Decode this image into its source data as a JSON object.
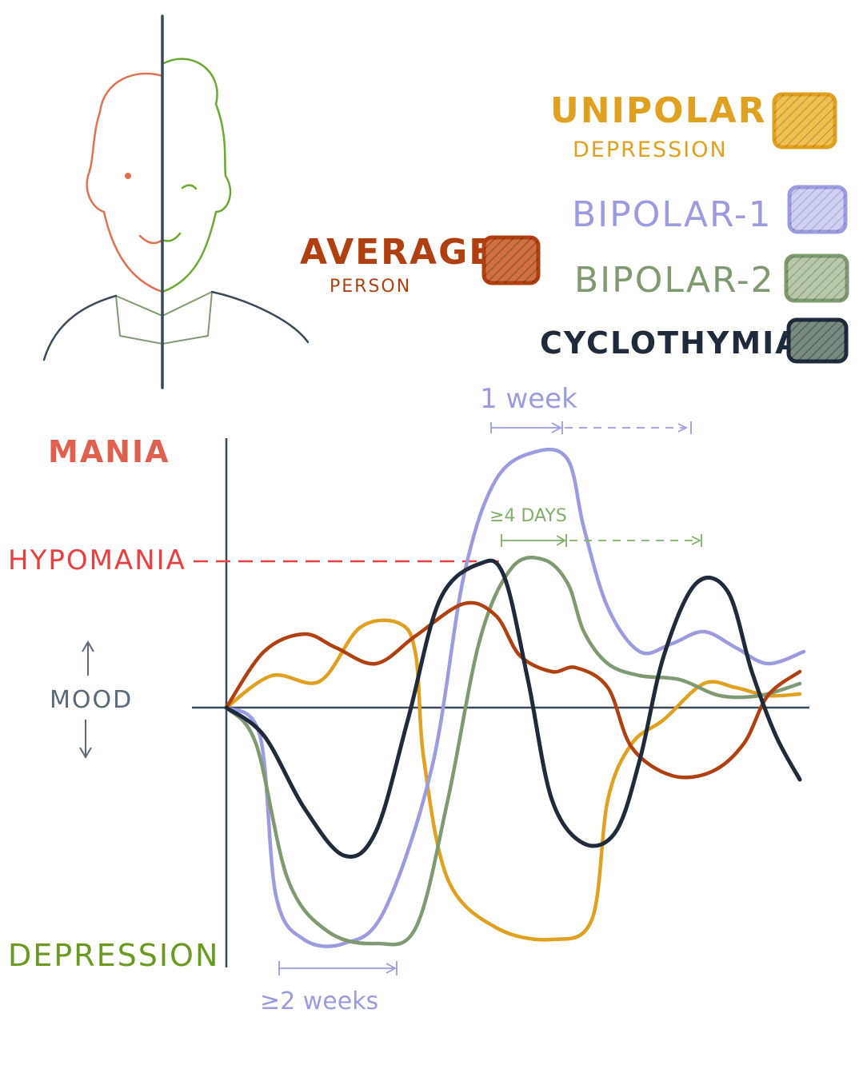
{
  "legend": {
    "average": {
      "title": "AVERAGE",
      "subtitle": "PERSON",
      "color": "#b0400f"
    },
    "unipolar": {
      "title": "UNIPOLAR",
      "subtitle": "DEPRESSION",
      "color": "#e0a020"
    },
    "bipolar1": {
      "title": "BIPOLAR-1",
      "color": "#9b9be0"
    },
    "bipolar2": {
      "title": "BIPOLAR-2",
      "color": "#7f9a70"
    },
    "cyclothymia": {
      "title": "CYCLOTHYMIA",
      "color": "#1f2a3a"
    }
  },
  "axis": {
    "mania": "MANIA",
    "hypomania": "HYPOMANIA",
    "mood": "MOOD",
    "depression": "DEPRESSION",
    "colors": {
      "mania": "#e06050",
      "hypomania": "#e84040",
      "depression": "#6a9a20",
      "mood": "#5a6a7a"
    }
  },
  "annotations": {
    "one_week": "1 week",
    "four_days": "≥4 DAYS",
    "two_weeks": "≥2 weeks"
  },
  "illustration": {
    "face_left_color": "#e07050",
    "face_right_color": "#6aaa30",
    "body_color": "#3a4a5a"
  }
}
